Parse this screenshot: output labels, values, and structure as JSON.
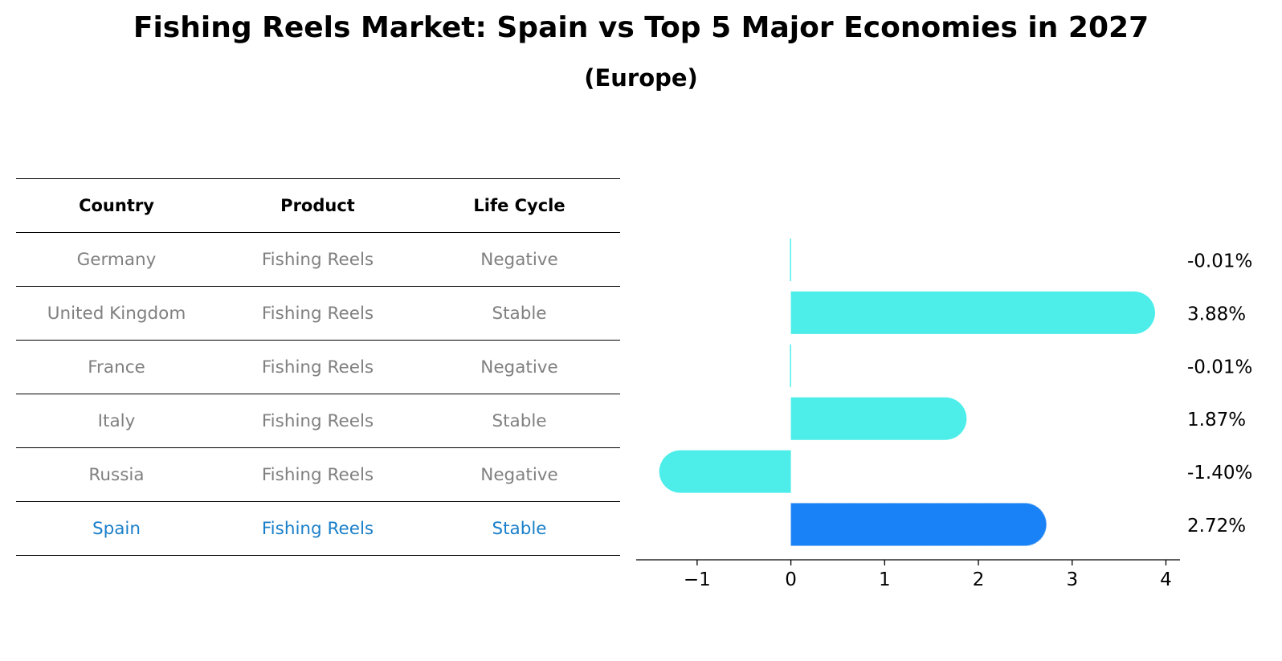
{
  "header": {
    "title": "Fishing Reels Market: Spain vs Top 5 Major Economies in 2027",
    "subtitle": "(Europe)"
  },
  "table": {
    "columns": [
      "Country",
      "Product",
      "Life Cycle"
    ],
    "rows": [
      {
        "country": "Germany",
        "product": "Fishing Reels",
        "life_cycle": "Negative"
      },
      {
        "country": "United Kingdom",
        "product": "Fishing Reels",
        "life_cycle": "Stable"
      },
      {
        "country": "France",
        "product": "Fishing Reels",
        "life_cycle": "Negative"
      },
      {
        "country": "Italy",
        "product": "Fishing Reels",
        "life_cycle": "Stable"
      },
      {
        "country": "Russia",
        "product": "Fishing Reels",
        "life_cycle": "Negative"
      },
      {
        "country": "Spain",
        "product": "Fishing Reels",
        "life_cycle": "Stable"
      }
    ],
    "highlight_row": 5
  },
  "colors": {
    "bar": "#4deeea",
    "bar_highlight": "#1a82f7",
    "text_muted": "#808080",
    "text_highlight": "#1a7fc9"
  },
  "chart_data": {
    "type": "bar",
    "orientation": "horizontal",
    "categories": [
      "Germany",
      "United Kingdom",
      "France",
      "Italy",
      "Russia",
      "Spain"
    ],
    "values": [
      -0.01,
      3.88,
      -0.01,
      1.87,
      -1.4,
      2.72
    ],
    "value_labels": [
      "-0.01%",
      "3.88%",
      "-0.01%",
      "1.87%",
      "-1.40%",
      "2.72%"
    ],
    "highlight_index": 5,
    "xlim": [
      -1.65,
      4.15
    ],
    "xticks": [
      -1,
      0,
      1,
      2,
      3,
      4
    ],
    "xtick_labels": [
      "−1",
      "0",
      "1",
      "2",
      "3",
      "4"
    ],
    "xlabel": "",
    "ylabel": "",
    "grid": false
  }
}
